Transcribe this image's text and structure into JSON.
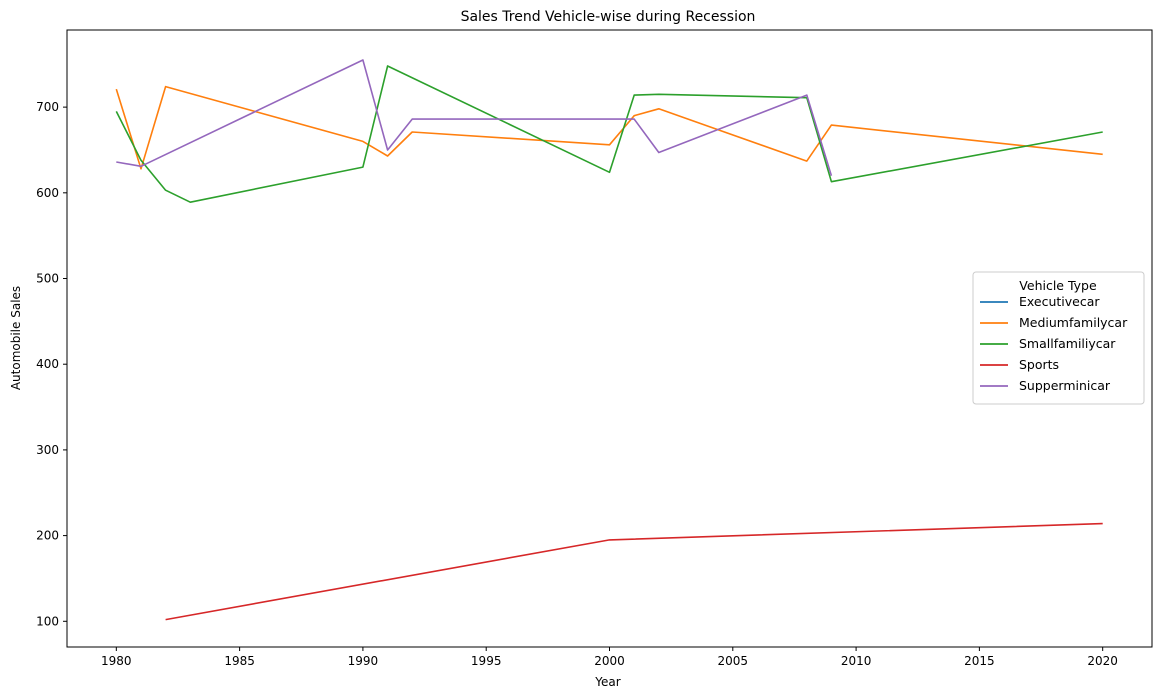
{
  "chart_data": {
    "type": "line",
    "title": "Sales Trend Vehicle-wise during Recession",
    "xlabel": "Year",
    "ylabel": "Automobile Sales",
    "xlim": [
      1978,
      2022
    ],
    "ylim": [
      70,
      790
    ],
    "xticks": [
      1980,
      1985,
      1990,
      1995,
      2000,
      2005,
      2010,
      2015,
      2020
    ],
    "yticks": [
      100,
      200,
      300,
      400,
      500,
      600,
      700
    ],
    "grid": false,
    "legend": {
      "title": "Vehicle Type",
      "placement": "center-right"
    },
    "series": [
      {
        "name": "Executivecar",
        "color": "#1f77b4",
        "points": []
      },
      {
        "name": "Mediumfamilycar",
        "color": "#ff7f0e",
        "points": [
          [
            1980,
            721
          ],
          [
            1981,
            628
          ],
          [
            1982,
            724
          ],
          [
            1990,
            660
          ],
          [
            1991,
            643
          ],
          [
            1992,
            671
          ],
          [
            2000,
            656
          ],
          [
            2001,
            690
          ],
          [
            2002,
            698
          ],
          [
            2008,
            637
          ],
          [
            2009,
            679
          ],
          [
            2020,
            645
          ]
        ]
      },
      {
        "name": "Smallfamiliycar",
        "color": "#2ca02c",
        "points": [
          [
            1980,
            695
          ],
          [
            1981,
            638
          ],
          [
            1982,
            603
          ],
          [
            1983,
            589
          ],
          [
            1990,
            630
          ],
          [
            1991,
            748
          ],
          [
            2000,
            624
          ],
          [
            2001,
            714
          ],
          [
            2002,
            715
          ],
          [
            2008,
            711
          ],
          [
            2009,
            613
          ],
          [
            2020,
            671
          ]
        ]
      },
      {
        "name": "Sports",
        "color": "#d62728",
        "points": [
          [
            1982,
            102
          ],
          [
            2000,
            195
          ],
          [
            2020,
            214
          ]
        ]
      },
      {
        "name": "Supperminicar",
        "color": "#9467bd",
        "points": [
          [
            1980,
            636
          ],
          [
            1981,
            631
          ],
          [
            1990,
            755
          ],
          [
            1991,
            650
          ],
          [
            1992,
            686
          ],
          [
            2001,
            686
          ],
          [
            2002,
            647
          ],
          [
            2008,
            714
          ],
          [
            2009,
            620
          ]
        ]
      }
    ]
  }
}
